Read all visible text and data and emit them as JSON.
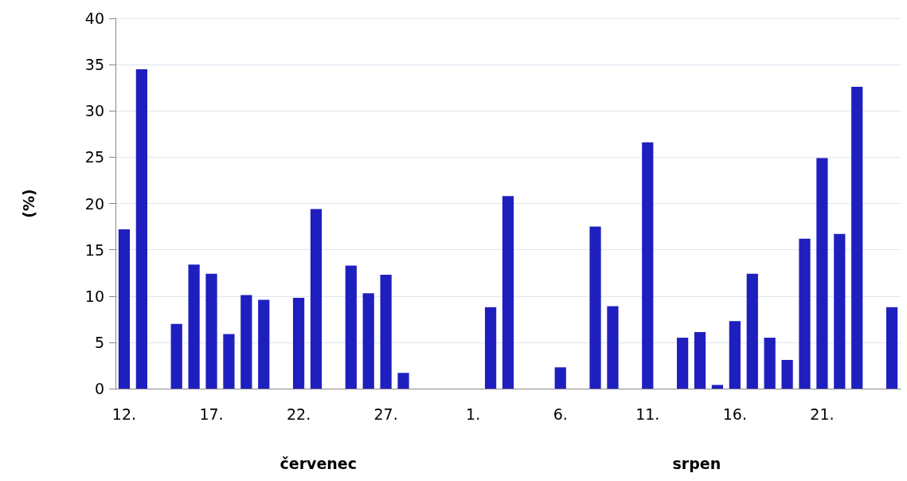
{
  "chart_data": {
    "type": "bar",
    "ylabel": "(%)",
    "categories": [
      "12.",
      null,
      null,
      null,
      null,
      "17.",
      null,
      null,
      null,
      null,
      "22.",
      null,
      null,
      null,
      null,
      "27.",
      null,
      null,
      null,
      null,
      "1.",
      null,
      null,
      null,
      null,
      "6.",
      null,
      null,
      null,
      null,
      "11.",
      null,
      null,
      null,
      null,
      "16.",
      null,
      null,
      null,
      null,
      "21.",
      null,
      null,
      null,
      null
    ],
    "values": [
      17.2,
      34.5,
      null,
      7.0,
      13.4,
      12.4,
      5.9,
      10.1,
      9.6,
      null,
      9.8,
      19.4,
      null,
      13.3,
      10.3,
      12.3,
      1.7,
      null,
      null,
      null,
      null,
      8.8,
      20.8,
      null,
      null,
      2.3,
      null,
      17.5,
      8.9,
      null,
      26.6,
      null,
      5.5,
      6.1,
      0.4,
      7.3,
      12.4,
      5.5,
      3.1,
      16.2,
      24.9,
      16.7,
      32.6,
      null,
      8.8
    ],
    "color": "#1f1fbf",
    "ylim": [
      0,
      40
    ],
    "yticks": [
      0,
      5,
      10,
      15,
      20,
      25,
      30,
      35,
      40
    ],
    "grid": "y",
    "annotations": [
      "červenec",
      "srpen"
    ]
  }
}
